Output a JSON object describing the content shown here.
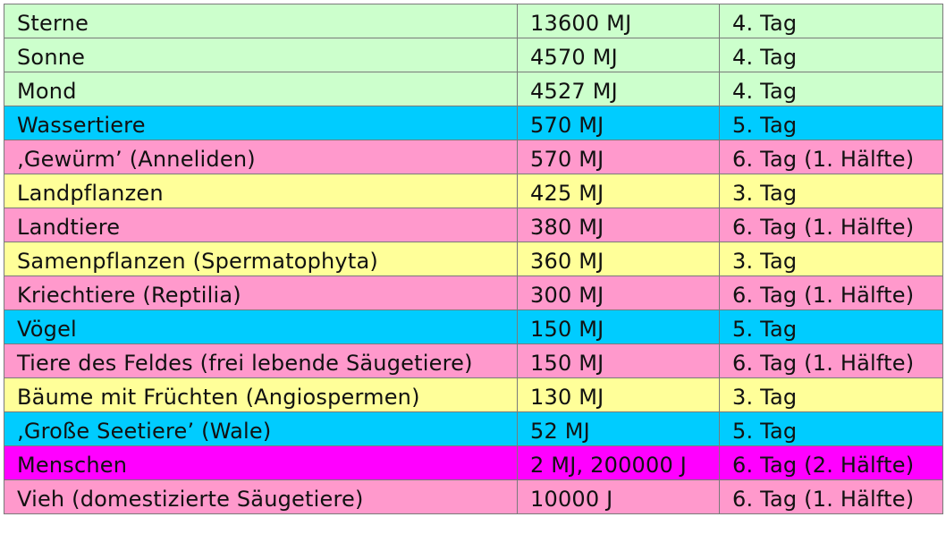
{
  "palette": {
    "green": "#ccffcc",
    "blue": "#00ccff",
    "pink": "#ff99cc",
    "yellow": "#ffff99",
    "magenta": "#ff00ff"
  },
  "rows": [
    {
      "name": "Sterne",
      "energy": "13600 MJ",
      "day": "4. Tag",
      "color": "green"
    },
    {
      "name": "Sonne",
      "energy": "4570 MJ",
      "day": "4. Tag",
      "color": "green"
    },
    {
      "name": "Mond",
      "energy": "4527 MJ",
      "day": "4. Tag",
      "color": "green"
    },
    {
      "name": "Wassertiere",
      "energy": "570 MJ",
      "day": "5. Tag",
      "color": "blue"
    },
    {
      "name": "‚Gewürm’ (Anneliden)",
      "energy": "570 MJ",
      "day": "6. Tag (1. Hälfte)",
      "color": "pink"
    },
    {
      "name": "Landpflanzen",
      "energy": "425 MJ",
      "day": "3. Tag",
      "color": "yellow"
    },
    {
      "name": "Landtiere",
      "energy": "380 MJ",
      "day": "6. Tag (1. Hälfte)",
      "color": "pink"
    },
    {
      "name": "Samenpflanzen (Spermatophyta)",
      "energy": "360 MJ",
      "day": "3. Tag",
      "color": "yellow"
    },
    {
      "name": "Kriechtiere (Reptilia)",
      "energy": "300 MJ",
      "day": "6. Tag (1. Hälfte)",
      "color": "pink"
    },
    {
      "name": "Vögel",
      "energy": "150 MJ",
      "day": "5. Tag",
      "color": "blue"
    },
    {
      "name": "Tiere des Feldes (frei lebende Säugetiere)",
      "energy": "150 MJ",
      "day": "6. Tag (1. Hälfte)",
      "color": "pink"
    },
    {
      "name": "Bäume mit Früchten (Angiospermen)",
      "energy": "130 MJ",
      "day": "3. Tag",
      "color": "yellow"
    },
    {
      "name": "‚Große Seetiere’ (Wale)",
      "energy": "52 MJ",
      "day": "5. Tag",
      "color": "blue"
    },
    {
      "name": "Menschen",
      "energy": "2 MJ, 200000 J",
      "day": "6. Tag (2. Hälfte)",
      "color": "magenta"
    },
    {
      "name": "Vieh (domestizierte Säugetiere)",
      "energy": "10000 J",
      "day": "6. Tag (1. Hälfte)",
      "color": "pink"
    }
  ]
}
